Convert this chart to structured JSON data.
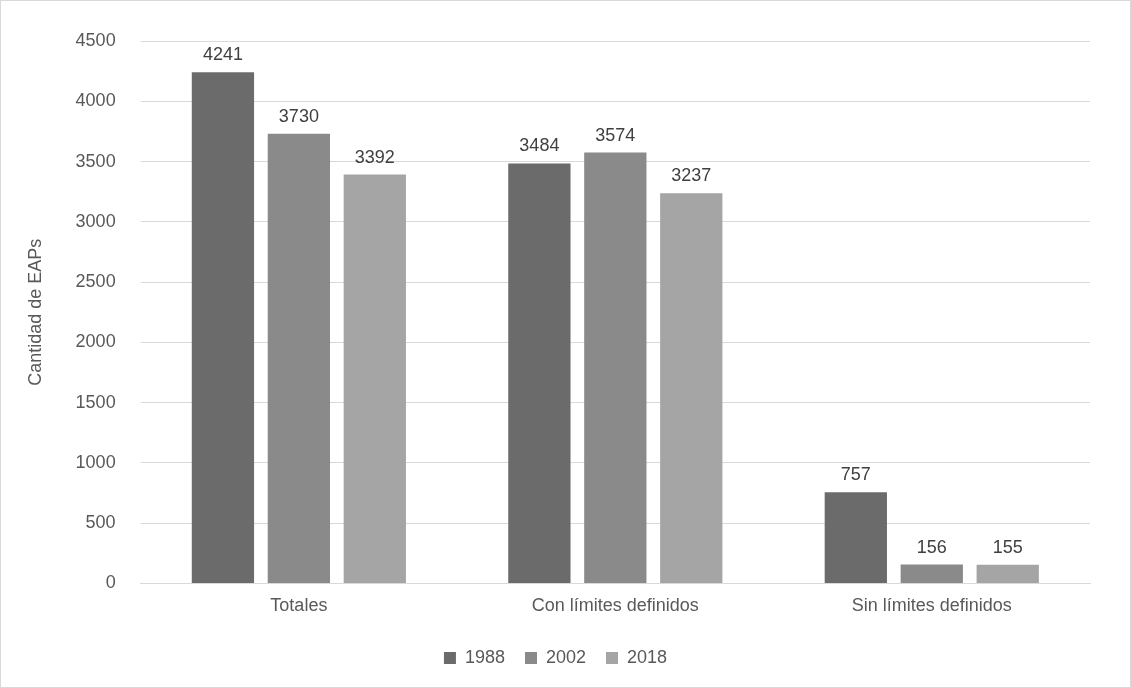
{
  "chart_data": {
    "type": "bar",
    "ylabel": "Cantidad de EAPs",
    "categories": [
      "Totales",
      "Con límites definidos",
      "Sin límites definidos"
    ],
    "series": [
      {
        "name": "1988",
        "color": "#6b6b6b",
        "values": [
          4241,
          3484,
          757
        ]
      },
      {
        "name": "2002",
        "color": "#8a8a8a",
        "values": [
          3730,
          3574,
          156
        ]
      },
      {
        "name": "2018",
        "color": "#a5a5a5",
        "values": [
          3392,
          3237,
          155
        ]
      }
    ],
    "ylim": [
      0,
      4500
    ],
    "yticks": [
      0,
      500,
      1000,
      1500,
      2000,
      2500,
      3000,
      3500,
      4000,
      4500
    ],
    "grid": "y",
    "legend": "bottom",
    "data_labels": true
  }
}
